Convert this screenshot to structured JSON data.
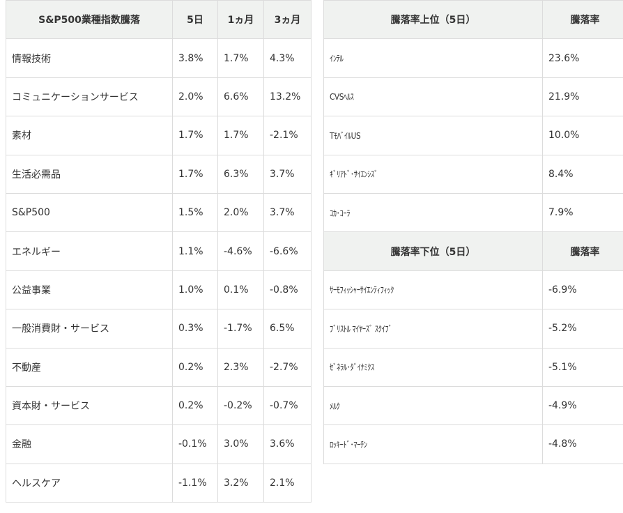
{
  "sector_table": {
    "headers": [
      "S&P500業種指数騰落",
      "5日",
      "1ヵ月",
      "3ヵ月"
    ],
    "rows": [
      {
        "name": "情報技術",
        "d5": "3.8%",
        "m1": "1.7%",
        "m3": "4.3%"
      },
      {
        "name": "コミュニケーションサービス",
        "d5": "2.0%",
        "m1": "6.6%",
        "m3": "13.2%"
      },
      {
        "name": "素材",
        "d5": "1.7%",
        "m1": "1.7%",
        "m3": "-2.1%"
      },
      {
        "name": "生活必需品",
        "d5": "1.7%",
        "m1": "6.3%",
        "m3": "3.7%"
      },
      {
        "name": "S&P500",
        "d5": "1.5%",
        "m1": "2.0%",
        "m3": "3.7%"
      },
      {
        "name": "エネルギー",
        "d5": "1.1%",
        "m1": "-4.6%",
        "m3": "-6.6%"
      },
      {
        "name": "公益事業",
        "d5": "1.0%",
        "m1": "0.1%",
        "m3": "-0.8%"
      },
      {
        "name": "一般消費財・サービス",
        "d5": "0.3%",
        "m1": "-1.7%",
        "m3": "6.5%"
      },
      {
        "name": "不動産",
        "d5": "0.2%",
        "m1": "2.3%",
        "m3": "-2.7%"
      },
      {
        "name": "資本財・サービス",
        "d5": "0.2%",
        "m1": "-0.2%",
        "m3": "-0.7%"
      },
      {
        "name": "金融",
        "d5": "-0.1%",
        "m1": "3.0%",
        "m3": "3.6%"
      },
      {
        "name": "ヘルスケア",
        "d5": "-1.1%",
        "m1": "3.2%",
        "m3": "2.1%"
      }
    ]
  },
  "top_table": {
    "headers": [
      "騰落率上位（5日）",
      "騰落率"
    ],
    "rows": [
      {
        "name": "ｲﾝﾃﾙ",
        "rate": "23.6%"
      },
      {
        "name": "CVSﾍﾙｽ",
        "rate": "21.9%"
      },
      {
        "name": "TﾓﾊﾞｲﾙUS",
        "rate": "10.0%"
      },
      {
        "name": "ｷﾞﾘｱﾄﾞ･ｻｲｴﾝｼｽﾞ",
        "rate": "8.4%"
      },
      {
        "name": "ｺｶ･ｺｰﾗ",
        "rate": "7.9%"
      }
    ]
  },
  "bottom_table": {
    "headers": [
      "騰落率下位（5日）",
      "騰落率"
    ],
    "rows": [
      {
        "name": "ｻｰﾓﾌｨｯｼｬｰｻｲｴﾝﾃｨﾌｨｯｸ",
        "rate": "-6.9%"
      },
      {
        "name": "ﾌﾞﾘｽﾄﾙ ﾏｲﾔｰｽﾞ ｽｸｲﾌﾞ",
        "rate": "-5.2%"
      },
      {
        "name": "ｾﾞﾈﾗﾙ･ﾀﾞｲﾅﾐｸｽ",
        "rate": "-5.1%"
      },
      {
        "name": "ﾒﾙｸ",
        "rate": "-4.9%"
      },
      {
        "name": "ﾛｯｷｰﾄﾞ･ﾏｰﾁﾝ",
        "rate": "-4.8%"
      }
    ]
  }
}
